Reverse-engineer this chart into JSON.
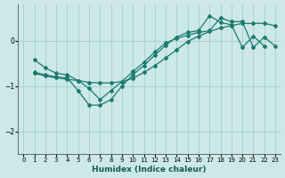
{
  "xlabel": "Humidex (Indice chaleur)",
  "ylabel": "",
  "background_color": "#cce8e8",
  "grid_color": "#a8cccc",
  "line_color": "#1a7a6e",
  "xlim": [
    -0.5,
    23.5
  ],
  "ylim": [
    -2.5,
    0.8
  ],
  "yticks": [
    0,
    -1,
    -2
  ],
  "xticks": [
    0,
    1,
    2,
    3,
    4,
    5,
    6,
    7,
    8,
    9,
    10,
    11,
    12,
    13,
    14,
    15,
    16,
    17,
    18,
    19,
    20,
    21,
    22,
    23
  ],
  "series": [
    {
      "x": [
        1,
        2,
        3,
        4,
        5,
        6,
        7,
        8,
        9,
        10,
        11,
        12,
        13,
        14,
        15,
        16,
        17,
        18,
        19,
        20,
        21,
        22,
        23
      ],
      "y": [
        -0.72,
        -0.78,
        -0.82,
        -0.85,
        -0.88,
        -0.92,
        -0.93,
        -0.93,
        -0.9,
        -0.83,
        -0.7,
        -0.55,
        -0.38,
        -0.2,
        -0.02,
        0.1,
        0.2,
        0.28,
        0.33,
        0.38,
        0.38,
        0.38,
        0.33
      ]
    },
    {
      "x": [
        1,
        2,
        3,
        4,
        5,
        6,
        7,
        8,
        9,
        10,
        11,
        12,
        13,
        14,
        15,
        16,
        17,
        18,
        19,
        20,
        21,
        22,
        23
      ],
      "y": [
        -0.7,
        -0.75,
        -0.8,
        -0.82,
        -1.1,
        -1.42,
        -1.42,
        -1.3,
        -1.0,
        -0.75,
        -0.55,
        -0.32,
        -0.1,
        0.08,
        0.18,
        0.22,
        0.55,
        0.4,
        0.35,
        -0.15,
        0.1,
        -0.12,
        null
      ]
    },
    {
      "x": [
        1,
        2,
        3,
        4,
        5,
        6,
        7,
        8,
        9,
        10,
        11,
        12,
        13,
        14,
        15,
        16,
        17,
        18,
        19,
        20,
        21,
        22,
        23
      ],
      "y": [
        -0.42,
        -0.6,
        -0.72,
        -0.75,
        -0.88,
        -1.05,
        -1.3,
        -1.1,
        -0.9,
        -0.68,
        -0.48,
        -0.25,
        -0.05,
        0.05,
        0.12,
        0.18,
        0.22,
        0.5,
        0.42,
        0.42,
        -0.15,
        0.08,
        -0.12
      ]
    }
  ],
  "figsize": [
    3.2,
    2.0
  ],
  "dpi": 100
}
